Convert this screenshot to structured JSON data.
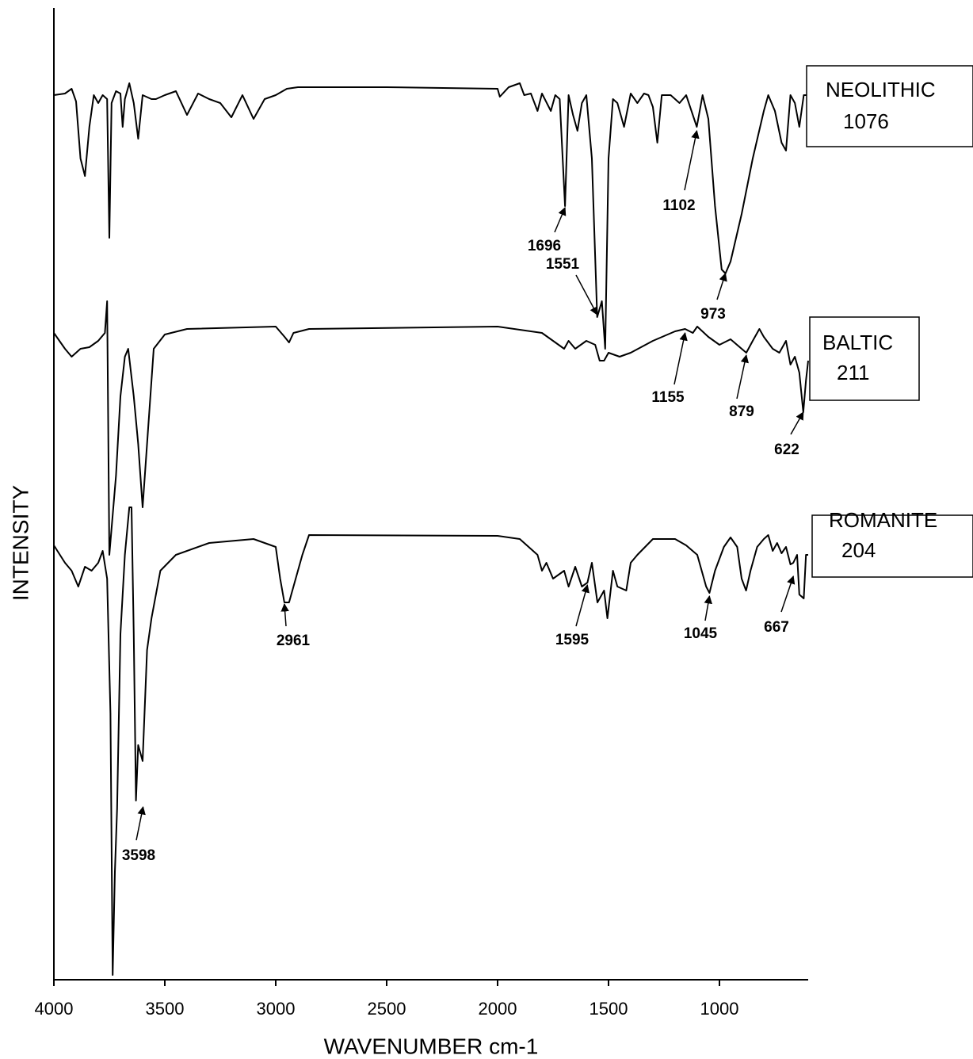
{
  "chart_data": {
    "type": "line",
    "xlabel": "WAVENUMBER cm-1",
    "ylabel": "INTENSITY",
    "xlim": [
      4000,
      600
    ],
    "xticks": [
      4000,
      3500,
      3000,
      2500,
      2000,
      1500,
      1000
    ],
    "ylim": [
      1236,
      10
    ],
    "series": [
      {
        "name": "NEOLITHIC",
        "sample": "1076",
        "color": "#000000",
        "x": [
          4000,
          3950,
          3920,
          3900,
          3880,
          3860,
          3840,
          3820,
          3800,
          3780,
          3760,
          3750,
          3740,
          3720,
          3700,
          3690,
          3680,
          3660,
          3640,
          3620,
          3600,
          3560,
          3540,
          3500,
          3450,
          3400,
          3350,
          3300,
          3250,
          3200,
          3150,
          3100,
          3050,
          3000,
          2950,
          2900,
          2500,
          2000,
          1990,
          1950,
          1900,
          1880,
          1850,
          1820,
          1800,
          1760,
          1740,
          1720,
          1696,
          1680,
          1660,
          1640,
          1620,
          1600,
          1575,
          1551,
          1530,
          1515,
          1500,
          1480,
          1460,
          1430,
          1400,
          1370,
          1340,
          1320,
          1300,
          1280,
          1260,
          1220,
          1180,
          1150,
          1102,
          1076,
          1050,
          1020,
          990,
          973,
          950,
          900,
          850,
          800,
          780,
          750,
          720,
          700,
          680,
          660,
          640,
          620,
          600
        ],
        "values": [
          120,
          118,
          112,
          128,
          200,
          222,
          160,
          120,
          130,
          120,
          125,
          300,
          130,
          115,
          118,
          160,
          125,
          105,
          130,
          175,
          120,
          125,
          125,
          120,
          115,
          145,
          118,
          125,
          130,
          148,
          120,
          150,
          125,
          120,
          112,
          110,
          110,
          112,
          122,
          110,
          105,
          120,
          118,
          140,
          118,
          140,
          120,
          125,
          260,
          120,
          145,
          165,
          130,
          120,
          200,
          400,
          380,
          440,
          200,
          125,
          130,
          160,
          118,
          130,
          118,
          120,
          135,
          180,
          120,
          120,
          130,
          120,
          160,
          120,
          150,
          260,
          340,
          345,
          330,
          270,
          200,
          140,
          120,
          140,
          180,
          190,
          120,
          130,
          160,
          120,
          120
        ],
        "peaks": [
          1696,
          1551,
          1102,
          973
        ]
      },
      {
        "name": "BALTIC",
        "sample": "211",
        "color": "#000000",
        "x": [
          4000,
          3950,
          3920,
          3880,
          3840,
          3800,
          3770,
          3760,
          3750,
          3720,
          3700,
          3680,
          3665,
          3640,
          3620,
          3600,
          3580,
          3550,
          3500,
          3400,
          3000,
          2960,
          2940,
          2920,
          2850,
          2000,
          1800,
          1700,
          1680,
          1650,
          1600,
          1560,
          1540,
          1520,
          1500,
          1450,
          1400,
          1300,
          1200,
          1155,
          1120,
          1100,
          1050,
          1000,
          950,
          900,
          879,
          850,
          820,
          800,
          760,
          730,
          700,
          680,
          660,
          640,
          622,
          610,
          600
        ],
        "values": [
          420,
          440,
          450,
          440,
          438,
          430,
          420,
          380,
          700,
          600,
          500,
          450,
          440,
          500,
          560,
          640,
          560,
          440,
          422,
          415,
          412,
          425,
          432,
          420,
          415,
          412,
          420,
          440,
          430,
          440,
          430,
          435,
          455,
          455,
          445,
          450,
          445,
          430,
          418,
          415,
          420,
          412,
          425,
          435,
          428,
          440,
          445,
          430,
          415,
          425,
          440,
          445,
          430,
          460,
          450,
          470,
          520,
          480,
          455
        ],
        "peaks": [
          1155,
          879,
          622
        ]
      },
      {
        "name": "ROMANITE",
        "sample": "204",
        "color": "#000000",
        "x": [
          4000,
          3950,
          3920,
          3890,
          3860,
          3830,
          3800,
          3780,
          3760,
          3745,
          3735,
          3725,
          3715,
          3700,
          3680,
          3660,
          3650,
          3640,
          3630,
          3620,
          3600,
          3580,
          3560,
          3520,
          3450,
          3300,
          3100,
          3000,
          2980,
          2961,
          2940,
          2920,
          2880,
          2850,
          2000,
          1900,
          1820,
          1800,
          1780,
          1750,
          1700,
          1680,
          1650,
          1620,
          1595,
          1575,
          1550,
          1520,
          1505,
          1480,
          1460,
          1420,
          1400,
          1370,
          1300,
          1200,
          1150,
          1100,
          1060,
          1045,
          1020,
          980,
          950,
          920,
          900,
          880,
          860,
          830,
          800,
          780,
          760,
          740,
          720,
          700,
          680,
          667,
          650,
          640,
          620,
          610,
          600
        ],
        "values": [
          688,
          710,
          720,
          740,
          715,
          720,
          710,
          695,
          730,
          900,
          1230,
          1100,
          1020,
          800,
          700,
          640,
          640,
          800,
          1010,
          940,
          960,
          820,
          780,
          720,
          700,
          685,
          680,
          690,
          730,
          760,
          760,
          740,
          700,
          675,
          676,
          680,
          700,
          720,
          710,
          730,
          720,
          740,
          715,
          740,
          735,
          710,
          760,
          745,
          780,
          720,
          740,
          745,
          710,
          700,
          680,
          680,
          688,
          700,
          740,
          748,
          720,
          690,
          678,
          690,
          730,
          745,
          720,
          690,
          680,
          675,
          695,
          685,
          698,
          690,
          712,
          710,
          700,
          750,
          755,
          700,
          700
        ],
        "peaks": [
          2961,
          1595,
          1045,
          667,
          3598
        ]
      }
    ]
  }
}
